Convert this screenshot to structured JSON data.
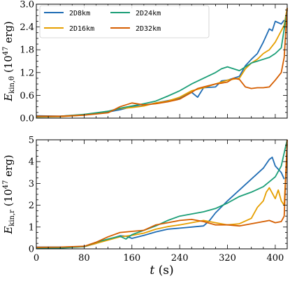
{
  "chart_data": [
    {
      "type": "line",
      "ylabel": "E_kin,θ (10^47 erg)",
      "xlim": [
        0,
        420
      ],
      "ylim": [
        0,
        3.0
      ],
      "yticks": [
        "0.0",
        "0.6",
        "1.2",
        "1.8",
        "2.4",
        "3.0"
      ],
      "grid": false,
      "legend": {
        "placement": "top-left",
        "entries": [
          "2D8km",
          "2D16km",
          "2D24km",
          "2D32km"
        ]
      },
      "series": [
        {
          "name": "2D8km",
          "color": "#1f6cb4",
          "points": [
            [
              0,
              0.06
            ],
            [
              40,
              0.05
            ],
            [
              80,
              0.09
            ],
            [
              120,
              0.16
            ],
            [
              140,
              0.22
            ],
            [
              160,
              0.3
            ],
            [
              180,
              0.33
            ],
            [
              200,
              0.4
            ],
            [
              220,
              0.46
            ],
            [
              240,
              0.52
            ],
            [
              250,
              0.62
            ],
            [
              260,
              0.68
            ],
            [
              270,
              0.55
            ],
            [
              280,
              0.8
            ],
            [
              300,
              0.82
            ],
            [
              310,
              0.98
            ],
            [
              320,
              1.0
            ],
            [
              340,
              1.1
            ],
            [
              350,
              1.38
            ],
            [
              360,
              1.55
            ],
            [
              370,
              1.7
            ],
            [
              380,
              2.0
            ],
            [
              390,
              2.35
            ],
            [
              395,
              2.3
            ],
            [
              400,
              2.55
            ],
            [
              410,
              2.48
            ],
            [
              415,
              2.58
            ]
          ]
        },
        {
          "name": "2D16km",
          "color": "#e69f00",
          "points": [
            [
              0,
              0.03
            ],
            [
              40,
              0.04
            ],
            [
              80,
              0.08
            ],
            [
              120,
              0.18
            ],
            [
              140,
              0.25
            ],
            [
              160,
              0.28
            ],
            [
              180,
              0.32
            ],
            [
              200,
              0.4
            ],
            [
              220,
              0.45
            ],
            [
              240,
              0.55
            ],
            [
              260,
              0.72
            ],
            [
              280,
              0.8
            ],
            [
              300,
              0.9
            ],
            [
              320,
              1.0
            ],
            [
              340,
              1.05
            ],
            [
              350,
              1.3
            ],
            [
              360,
              1.45
            ],
            [
              370,
              1.55
            ],
            [
              380,
              1.7
            ],
            [
              390,
              1.8
            ],
            [
              400,
              2.0
            ],
            [
              410,
              2.3
            ],
            [
              415,
              2.45
            ],
            [
              420,
              2.9
            ]
          ]
        },
        {
          "name": "2D24km",
          "color": "#1b9e77",
          "points": [
            [
              0,
              0.04
            ],
            [
              40,
              0.05
            ],
            [
              80,
              0.1
            ],
            [
              120,
              0.18
            ],
            [
              140,
              0.26
            ],
            [
              160,
              0.32
            ],
            [
              180,
              0.38
            ],
            [
              200,
              0.45
            ],
            [
              220,
              0.58
            ],
            [
              240,
              0.72
            ],
            [
              260,
              0.9
            ],
            [
              280,
              1.05
            ],
            [
              300,
              1.2
            ],
            [
              310,
              1.3
            ],
            [
              320,
              1.35
            ],
            [
              340,
              1.25
            ],
            [
              350,
              1.35
            ],
            [
              360,
              1.45
            ],
            [
              370,
              1.5
            ],
            [
              380,
              1.55
            ],
            [
              390,
              1.6
            ],
            [
              400,
              1.7
            ],
            [
              410,
              1.85
            ],
            [
              420,
              2.85
            ]
          ]
        },
        {
          "name": "2D32km",
          "color": "#d55e00",
          "points": [
            [
              0,
              0.05
            ],
            [
              40,
              0.05
            ],
            [
              80,
              0.08
            ],
            [
              120,
              0.14
            ],
            [
              140,
              0.3
            ],
            [
              160,
              0.4
            ],
            [
              180,
              0.35
            ],
            [
              200,
              0.38
            ],
            [
              220,
              0.43
            ],
            [
              240,
              0.5
            ],
            [
              260,
              0.68
            ],
            [
              270,
              0.78
            ],
            [
              280,
              0.82
            ],
            [
              300,
              0.9
            ],
            [
              310,
              0.92
            ],
            [
              320,
              0.95
            ],
            [
              330,
              1.05
            ],
            [
              340,
              1.02
            ],
            [
              350,
              0.82
            ],
            [
              360,
              0.78
            ],
            [
              370,
              0.8
            ],
            [
              380,
              0.8
            ],
            [
              390,
              0.82
            ],
            [
              400,
              1.0
            ],
            [
              410,
              1.2
            ],
            [
              415,
              1.6
            ],
            [
              420,
              2.9
            ]
          ]
        }
      ]
    },
    {
      "type": "line",
      "xlabel": "t (s)",
      "ylabel": "E_kin,r (10^47 erg)",
      "xlim": [
        0,
        420
      ],
      "ylim": [
        0,
        5
      ],
      "xticks": [
        "0",
        "80",
        "160",
        "240",
        "320",
        "400"
      ],
      "yticks": [
        "0",
        "1",
        "2",
        "3",
        "4",
        "5"
      ],
      "grid": false,
      "series": [
        {
          "name": "2D8km",
          "color": "#1f6cb4",
          "points": [
            [
              0,
              0.08
            ],
            [
              40,
              0.08
            ],
            [
              80,
              0.1
            ],
            [
              100,
              0.25
            ],
            [
              120,
              0.42
            ],
            [
              140,
              0.6
            ],
            [
              150,
              0.58
            ],
            [
              160,
              0.48
            ],
            [
              180,
              0.62
            ],
            [
              200,
              0.78
            ],
            [
              220,
              0.9
            ],
            [
              240,
              0.95
            ],
            [
              260,
              1.0
            ],
            [
              280,
              1.05
            ],
            [
              290,
              1.3
            ],
            [
              300,
              1.65
            ],
            [
              320,
              2.2
            ],
            [
              340,
              2.7
            ],
            [
              360,
              3.2
            ],
            [
              380,
              3.7
            ],
            [
              390,
              4.1
            ],
            [
              395,
              4.2
            ],
            [
              400,
              3.8
            ],
            [
              410,
              3.5
            ],
            [
              415,
              3.2
            ]
          ]
        },
        {
          "name": "2D16km",
          "color": "#e69f00",
          "points": [
            [
              0,
              0.05
            ],
            [
              40,
              0.05
            ],
            [
              80,
              0.1
            ],
            [
              120,
              0.4
            ],
            [
              140,
              0.55
            ],
            [
              160,
              0.62
            ],
            [
              180,
              0.72
            ],
            [
              200,
              0.9
            ],
            [
              220,
              1.02
            ],
            [
              240,
              1.1
            ],
            [
              260,
              1.2
            ],
            [
              280,
              1.3
            ],
            [
              300,
              1.2
            ],
            [
              320,
              1.1
            ],
            [
              340,
              1.15
            ],
            [
              360,
              1.4
            ],
            [
              370,
              1.9
            ],
            [
              380,
              2.2
            ],
            [
              385,
              2.6
            ],
            [
              390,
              2.8
            ],
            [
              400,
              2.3
            ],
            [
              405,
              2.7
            ],
            [
              410,
              2.2
            ],
            [
              415,
              2.0
            ],
            [
              420,
              4.8
            ]
          ]
        },
        {
          "name": "2D24km",
          "color": "#1b9e77",
          "points": [
            [
              0,
              0.04
            ],
            [
              40,
              0.04
            ],
            [
              80,
              0.1
            ],
            [
              100,
              0.3
            ],
            [
              120,
              0.45
            ],
            [
              140,
              0.58
            ],
            [
              150,
              0.45
            ],
            [
              160,
              0.65
            ],
            [
              180,
              0.85
            ],
            [
              200,
              1.05
            ],
            [
              220,
              1.3
            ],
            [
              240,
              1.5
            ],
            [
              260,
              1.6
            ],
            [
              280,
              1.7
            ],
            [
              300,
              1.85
            ],
            [
              320,
              2.1
            ],
            [
              340,
              2.4
            ],
            [
              360,
              2.6
            ],
            [
              380,
              2.85
            ],
            [
              400,
              3.3
            ],
            [
              410,
              3.8
            ],
            [
              415,
              4.4
            ],
            [
              420,
              5.0
            ]
          ]
        },
        {
          "name": "2D32km",
          "color": "#d55e00",
          "points": [
            [
              0,
              0.07
            ],
            [
              40,
              0.08
            ],
            [
              80,
              0.12
            ],
            [
              100,
              0.3
            ],
            [
              120,
              0.55
            ],
            [
              140,
              0.75
            ],
            [
              160,
              0.8
            ],
            [
              180,
              0.85
            ],
            [
              200,
              1.1
            ],
            [
              220,
              1.2
            ],
            [
              240,
              1.3
            ],
            [
              260,
              1.35
            ],
            [
              280,
              1.25
            ],
            [
              300,
              1.1
            ],
            [
              320,
              1.1
            ],
            [
              340,
              1.05
            ],
            [
              360,
              1.15
            ],
            [
              380,
              1.25
            ],
            [
              390,
              1.3
            ],
            [
              400,
              1.2
            ],
            [
              410,
              1.25
            ],
            [
              415,
              1.5
            ],
            [
              420,
              5.0
            ]
          ]
        }
      ]
    }
  ]
}
